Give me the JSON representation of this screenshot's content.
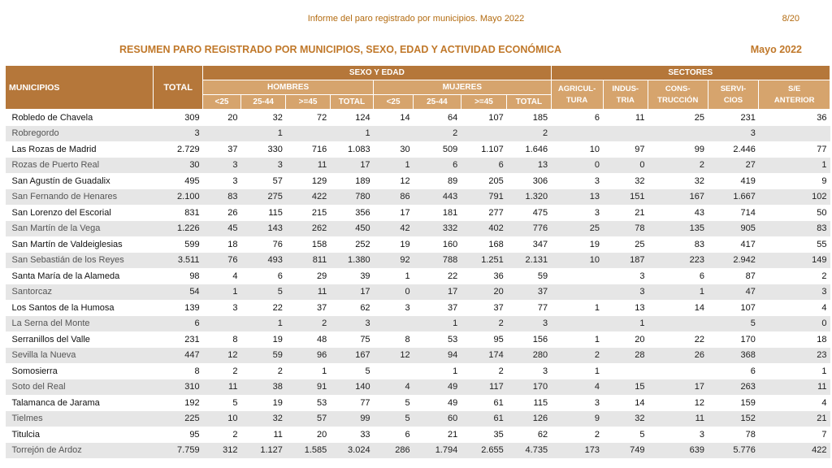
{
  "header": {
    "report_title": "Informe del paro registrado por municipios. Mayo 2022",
    "page": "8/20"
  },
  "title": "RESUMEN PARO REGISTRADO POR MUNICIPIOS, SEXO, EDAD Y ACTIVIDAD ECONÓMICA",
  "date": "Mayo 2022",
  "columns": {
    "municipios": "MUNICIPIOS",
    "total": "TOTAL",
    "sexo_edad": "SEXO Y EDAD",
    "sectores": "SECTORES",
    "hombres": "HOMBRES",
    "mujeres": "MUJERES",
    "age_lt25": "<25",
    "age_25_44": "25-44",
    "age_ge45": ">=45",
    "sub_total": "TOTAL",
    "agricultura": [
      "AGRICUL-",
      "TURA"
    ],
    "industria": [
      "INDUS-",
      "TRIA"
    ],
    "construccion": [
      "CONS-",
      "TRUCCIÓN"
    ],
    "servicios": [
      "SERVI-",
      "CIOS"
    ],
    "se_anterior": [
      "S/E",
      "ANTERIOR"
    ]
  },
  "rows": [
    [
      "Robledo de Chavela",
      "309",
      "20",
      "32",
      "72",
      "124",
      "14",
      "64",
      "107",
      "185",
      "6",
      "11",
      "25",
      "231",
      "36"
    ],
    [
      "Robregordo",
      "3",
      "",
      "1",
      "",
      "1",
      "",
      "2",
      "",
      "2",
      "",
      "",
      "",
      "3",
      ""
    ],
    [
      "Las Rozas de Madrid",
      "2.729",
      "37",
      "330",
      "716",
      "1.083",
      "30",
      "509",
      "1.107",
      "1.646",
      "10",
      "97",
      "99",
      "2.446",
      "77"
    ],
    [
      "Rozas de Puerto Real",
      "30",
      "3",
      "3",
      "11",
      "17",
      "1",
      "6",
      "6",
      "13",
      "0",
      "0",
      "2",
      "27",
      "1"
    ],
    [
      "San Agustín de Guadalix",
      "495",
      "3",
      "57",
      "129",
      "189",
      "12",
      "89",
      "205",
      "306",
      "3",
      "32",
      "32",
      "419",
      "9"
    ],
    [
      "San Fernando de Henares",
      "2.100",
      "83",
      "275",
      "422",
      "780",
      "86",
      "443",
      "791",
      "1.320",
      "13",
      "151",
      "167",
      "1.667",
      "102"
    ],
    [
      "San Lorenzo del Escorial",
      "831",
      "26",
      "115",
      "215",
      "356",
      "17",
      "181",
      "277",
      "475",
      "3",
      "21",
      "43",
      "714",
      "50"
    ],
    [
      "San Martín de la Vega",
      "1.226",
      "45",
      "143",
      "262",
      "450",
      "42",
      "332",
      "402",
      "776",
      "25",
      "78",
      "135",
      "905",
      "83"
    ],
    [
      "San Martín de Valdeiglesias",
      "599",
      "18",
      "76",
      "158",
      "252",
      "19",
      "160",
      "168",
      "347",
      "19",
      "25",
      "83",
      "417",
      "55"
    ],
    [
      "San Sebastián de los Reyes",
      "3.511",
      "76",
      "493",
      "811",
      "1.380",
      "92",
      "788",
      "1.251",
      "2.131",
      "10",
      "187",
      "223",
      "2.942",
      "149"
    ],
    [
      "Santa María de la Alameda",
      "98",
      "4",
      "6",
      "29",
      "39",
      "1",
      "22",
      "36",
      "59",
      "",
      "3",
      "6",
      "87",
      "2"
    ],
    [
      "Santorcaz",
      "54",
      "1",
      "5",
      "11",
      "17",
      "0",
      "17",
      "20",
      "37",
      "",
      "3",
      "1",
      "47",
      "3"
    ],
    [
      "Los Santos de la Humosa",
      "139",
      "3",
      "22",
      "37",
      "62",
      "3",
      "37",
      "37",
      "77",
      "1",
      "13",
      "14",
      "107",
      "4"
    ],
    [
      "La Serna del Monte",
      "6",
      "",
      "1",
      "2",
      "3",
      "",
      "1",
      "2",
      "3",
      "",
      "1",
      "",
      "5",
      "0"
    ],
    [
      "Serranillos del Valle",
      "231",
      "8",
      "19",
      "48",
      "75",
      "8",
      "53",
      "95",
      "156",
      "1",
      "20",
      "22",
      "170",
      "18"
    ],
    [
      "Sevilla la Nueva",
      "447",
      "12",
      "59",
      "96",
      "167",
      "12",
      "94",
      "174",
      "280",
      "2",
      "28",
      "26",
      "368",
      "23"
    ],
    [
      "Somosierra",
      "8",
      "2",
      "2",
      "1",
      "5",
      "",
      "1",
      "2",
      "3",
      "1",
      "",
      "",
      "6",
      "1"
    ],
    [
      "Soto del Real",
      "310",
      "11",
      "38",
      "91",
      "140",
      "4",
      "49",
      "117",
      "170",
      "4",
      "15",
      "17",
      "263",
      "11"
    ],
    [
      "Talamanca de Jarama",
      "192",
      "5",
      "19",
      "53",
      "77",
      "5",
      "49",
      "61",
      "115",
      "3",
      "14",
      "12",
      "159",
      "4"
    ],
    [
      "Tielmes",
      "225",
      "10",
      "32",
      "57",
      "99",
      "5",
      "60",
      "61",
      "126",
      "9",
      "32",
      "11",
      "152",
      "21"
    ],
    [
      "Titulcia",
      "95",
      "2",
      "11",
      "20",
      "33",
      "6",
      "21",
      "35",
      "62",
      "2",
      "5",
      "3",
      "78",
      "7"
    ],
    [
      "Torrejón de Ardoz",
      "7.759",
      "312",
      "1.127",
      "1.585",
      "3.024",
      "286",
      "1.794",
      "2.655",
      "4.735",
      "173",
      "749",
      "639",
      "5.776",
      "422"
    ]
  ]
}
